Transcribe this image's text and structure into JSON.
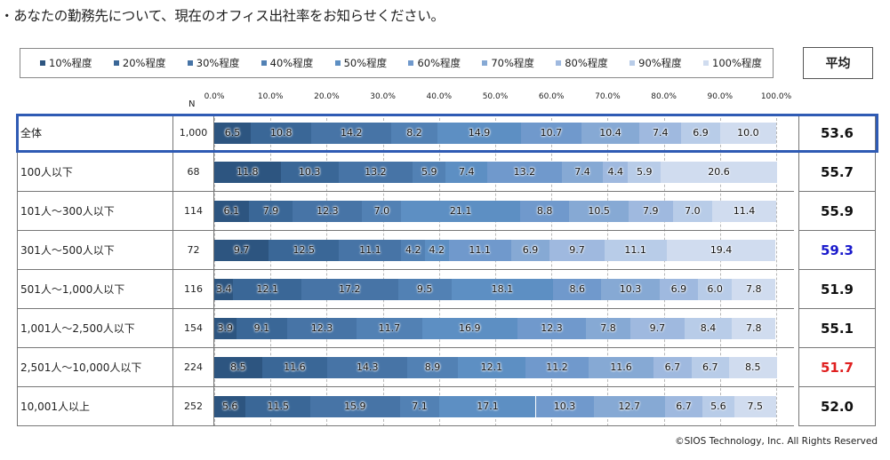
{
  "title": "・あなたの勤務先について、現在のオフィス出社率をお知らせください。",
  "avg_header": "平均",
  "n_header": "N",
  "copyright": "©SIOS Technology, Inc. All Rights Reserved",
  "colors": {
    "segments": [
      "#2d5580",
      "#3a6797",
      "#4774a6",
      "#5281b4",
      "#5d8fc3",
      "#7099cc",
      "#86a9d4",
      "#9fb9df",
      "#b8cce8",
      "#d0dcef"
    ],
    "avg_default": "#111111",
    "avg_blue": "#1a1acc",
    "avg_red": "#e02020",
    "highlight": "#2f5bb4"
  },
  "chart_data": {
    "type": "bar",
    "orientation": "horizontal-stacked-100",
    "legend": [
      "10%程度",
      "20%程度",
      "30%程度",
      "40%程度",
      "50%程度",
      "60%程度",
      "70%程度",
      "80%程度",
      "90%程度",
      "100%程度"
    ],
    "x_ticks": [
      "0.0%",
      "10.0%",
      "20.0%",
      "30.0%",
      "40.0%",
      "50.0%",
      "60.0%",
      "70.0%",
      "80.0%",
      "90.0%",
      "100.0%"
    ],
    "xlim": [
      0,
      100
    ],
    "rows": [
      {
        "label": "全体",
        "n": "1,000",
        "avg": "53.6",
        "avg_color": "default",
        "values": [
          6.5,
          10.8,
          14.2,
          8.2,
          14.9,
          10.7,
          10.4,
          7.4,
          6.9,
          10.0
        ],
        "labels": [
          "6.5",
          "10.8",
          "14.2",
          "8.2",
          "14.9",
          "10.7",
          "10.4",
          "7.4",
          "6.9",
          "10.0"
        ]
      },
      {
        "label": "100人以下",
        "n": "68",
        "avg": "55.7",
        "avg_color": "default",
        "values": [
          11.8,
          10.3,
          13.2,
          5.9,
          7.4,
          13.2,
          7.4,
          4.4,
          5.9,
          20.6
        ],
        "labels": [
          "11.8",
          "10.3",
          "13.2",
          "5.9",
          "7.4",
          "13.2",
          "7.4",
          "4.4",
          "5.9",
          "20.6"
        ]
      },
      {
        "label": "101人～300人以下",
        "n": "114",
        "avg": "55.9",
        "avg_color": "default",
        "values": [
          6.1,
          7.9,
          12.3,
          7.0,
          21.1,
          8.8,
          10.5,
          7.9,
          7.0,
          11.4
        ],
        "labels": [
          "6.1",
          "7.9",
          "12.3",
          "7.0",
          "21.1",
          "8.8",
          "10.5",
          "7.9",
          "7.0",
          "11.4"
        ]
      },
      {
        "label": "301人～500人以下",
        "n": "72",
        "avg": "59.3",
        "avg_color": "blue",
        "values": [
          9.7,
          12.5,
          11.1,
          4.2,
          4.2,
          11.1,
          6.9,
          9.7,
          11.1,
          19.4
        ],
        "labels": [
          "9.7",
          "12.5",
          "11.1",
          "4.2",
          "4.2",
          "11.1",
          "6.9",
          "9.7",
          "11.1",
          "19.4"
        ]
      },
      {
        "label": "501人～1,000人以下",
        "n": "116",
        "avg": "51.9",
        "avg_color": "default",
        "values": [
          3.4,
          12.1,
          17.2,
          9.5,
          18.1,
          8.6,
          10.3,
          6.9,
          6.0,
          7.8
        ],
        "labels": [
          "3.4",
          "12.1",
          "17.2",
          "9.5",
          "18.1",
          "8.6",
          "10.3",
          "6.9",
          "6.0",
          "7.8"
        ]
      },
      {
        "label": "1,001人～2,500人以下",
        "n": "154",
        "avg": "55.1",
        "avg_color": "default",
        "values": [
          3.9,
          9.1,
          12.3,
          11.7,
          16.9,
          12.3,
          7.8,
          9.7,
          8.4,
          7.8
        ],
        "labels": [
          "3.9",
          "9.1",
          "12.3",
          "11.7",
          "16.9",
          "12.3",
          "7.8",
          "9.7",
          "8.4",
          "7.8"
        ]
      },
      {
        "label": "2,501人～10,000人以下",
        "n": "224",
        "avg": "51.7",
        "avg_color": "red",
        "values": [
          8.5,
          11.6,
          14.3,
          8.9,
          12.1,
          11.2,
          11.6,
          6.7,
          6.7,
          8.5
        ],
        "labels": [
          "8.5",
          "11.6",
          "14.3",
          "8.9",
          "12.1",
          "11.2",
          "11.6",
          "6.7",
          "6.7",
          "8.5"
        ]
      },
      {
        "label": "10,001人以上",
        "n": "252",
        "avg": "52.0",
        "avg_color": "default",
        "values": [
          5.6,
          11.5,
          15.9,
          7.1,
          17.1,
          10.3,
          12.7,
          6.7,
          5.6,
          7.5
        ],
        "labels": [
          "5.6",
          "11.5",
          "15.9",
          "7.1",
          "17.1",
          "10.3",
          "12.7",
          "6.7",
          "5.6",
          "7.5"
        ]
      }
    ]
  }
}
